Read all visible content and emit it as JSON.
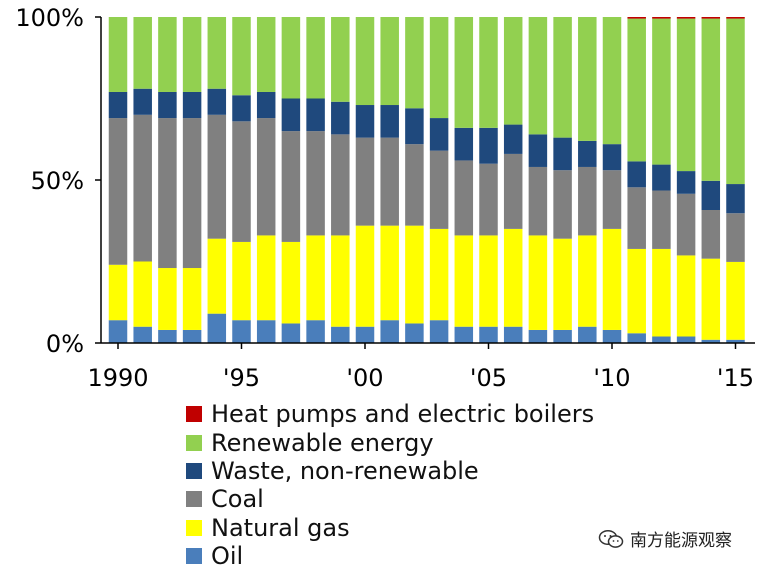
{
  "chart_data": {
    "type": "bar",
    "stacked": true,
    "stack_mode": "percent",
    "ylim": [
      0,
      100
    ],
    "yticks": [
      {
        "value": 0,
        "label": "0%"
      },
      {
        "value": 50,
        "label": "50%"
      },
      {
        "value": 100,
        "label": "100%"
      }
    ],
    "categories": [
      "1990",
      "1991",
      "1992",
      "1993",
      "1994",
      "1995",
      "1996",
      "1997",
      "1998",
      "1999",
      "2000",
      "2001",
      "2002",
      "2003",
      "2004",
      "2005",
      "2006",
      "2007",
      "2008",
      "2009",
      "2010",
      "2011",
      "2012",
      "2013",
      "2014",
      "2015"
    ],
    "xtick_labels": [
      {
        "index": 0,
        "label": "1990"
      },
      {
        "index": 5,
        "label": "'95"
      },
      {
        "index": 10,
        "label": "'00"
      },
      {
        "index": 15,
        "label": "'05"
      },
      {
        "index": 20,
        "label": "'10"
      },
      {
        "index": 25,
        "label": "'15"
      }
    ],
    "series": [
      {
        "name": "Oil",
        "color": "#4a7ebb",
        "values": [
          7,
          5,
          4,
          4,
          9,
          7,
          7,
          6,
          7,
          5,
          5,
          7,
          6,
          7,
          5,
          5,
          5,
          4,
          4,
          5,
          4,
          3,
          2,
          2,
          1,
          1
        ]
      },
      {
        "name": "Natural gas",
        "color": "#ffff00",
        "values": [
          17,
          20,
          19,
          19,
          23,
          24,
          26,
          25,
          26,
          28,
          31,
          29,
          30,
          28,
          28,
          28,
          30,
          29,
          28,
          28,
          31,
          26,
          27,
          25,
          25,
          24
        ]
      },
      {
        "name": "Coal",
        "color": "#808080",
        "values": [
          45,
          45,
          46,
          46,
          38,
          37,
          36,
          34,
          32,
          31,
          27,
          27,
          25,
          24,
          23,
          22,
          23,
          21,
          21,
          21,
          18,
          19,
          18,
          19,
          15,
          15
        ]
      },
      {
        "name": "Waste, non-renewable",
        "color": "#1f497d",
        "values": [
          8,
          8,
          8,
          8,
          8,
          8,
          8,
          10,
          10,
          10,
          10,
          10,
          11,
          10,
          10,
          11,
          9,
          10,
          10,
          8,
          8,
          8,
          8,
          7,
          9,
          9
        ]
      },
      {
        "name": "Renewable energy",
        "color": "#92d050",
        "values": [
          23,
          22,
          23,
          23,
          22,
          24,
          23,
          25,
          25,
          26,
          27,
          27,
          28,
          31,
          34,
          34,
          33,
          36,
          37,
          38,
          39,
          44,
          45,
          47,
          50,
          51
        ]
      },
      {
        "name": "Heat pumps and electric boilers",
        "color": "#c00000",
        "values": [
          0,
          0,
          0,
          0,
          0,
          0,
          0,
          0,
          0,
          0,
          0,
          0,
          0,
          0,
          0,
          0,
          0,
          0,
          0,
          0,
          0,
          0.5,
          0.5,
          0.5,
          0.5,
          0.5
        ]
      }
    ],
    "legend_order": [
      "Heat pumps and electric boilers",
      "Renewable energy",
      "Waste, non-renewable",
      "Coal",
      "Natural gas",
      "Oil"
    ],
    "legend_position": "bottom"
  },
  "watermark": {
    "text": "南方能源观察",
    "icon": "wechat-icon"
  }
}
